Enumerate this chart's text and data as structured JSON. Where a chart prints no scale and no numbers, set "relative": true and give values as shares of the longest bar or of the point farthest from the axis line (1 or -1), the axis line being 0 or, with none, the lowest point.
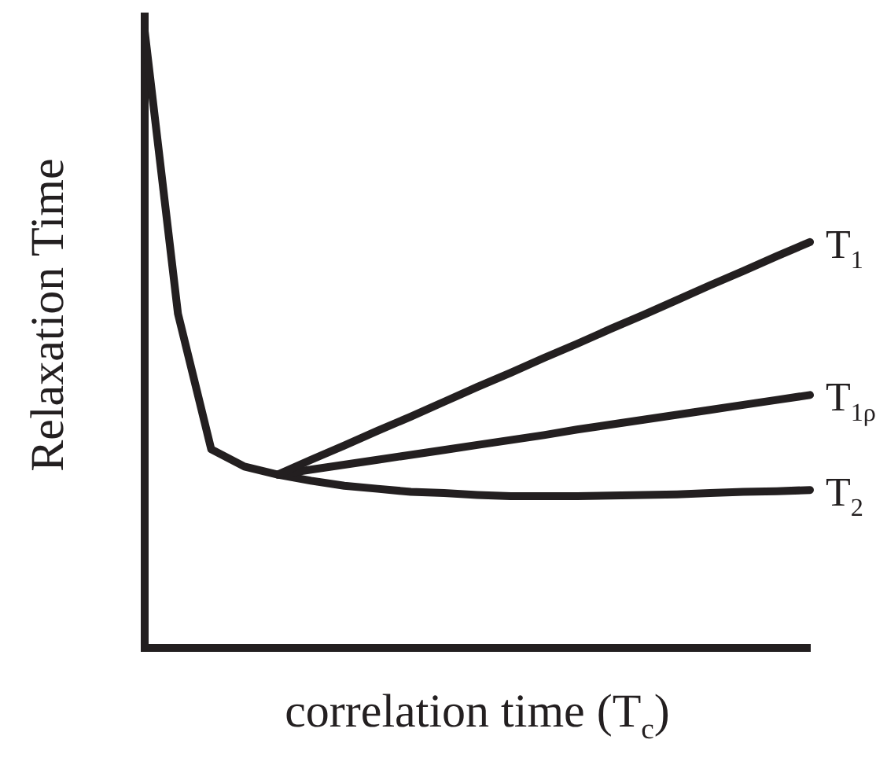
{
  "chart_data": {
    "type": "line",
    "relative": true,
    "xlabel": "correlation time (T$_{c}$)",
    "ylabel": "Relaxation Time",
    "legend": false,
    "grid": false,
    "marker": "none",
    "line_style": "solid",
    "categories": [
      null,
      null,
      null,
      null,
      null,
      null,
      null,
      null,
      null,
      null,
      null,
      null,
      null,
      null,
      null,
      null,
      null,
      null,
      null,
      null,
      null
    ],
    "series": [
      {
        "name": "T$_{1}$",
        "color": "#231f20",
        "values": [
          null,
          null,
          null,
          null,
          0.281,
          0.305,
          0.328,
          0.352,
          0.375,
          0.399,
          0.423,
          0.446,
          0.47,
          0.493,
          0.517,
          0.54,
          0.564,
          0.588,
          0.611,
          0.635,
          0.658
        ]
      },
      {
        "name": "T$_{1ρ}$",
        "color": "#231f20",
        "values": [
          null,
          null,
          null,
          null,
          0.281,
          0.289,
          0.297,
          0.305,
          0.313,
          0.321,
          0.329,
          0.337,
          0.345,
          0.354,
          0.362,
          0.37,
          0.378,
          0.386,
          0.394,
          0.402,
          0.41
        ]
      },
      {
        "name": "T$_{2}$",
        "color": "#231f20",
        "values": [
          1,
          0.542,
          0.322,
          0.294,
          0.281,
          0.271,
          0.263,
          0.258,
          0.253,
          0.251,
          0.248,
          0.246,
          0.246,
          0.246,
          0.247,
          0.248,
          0.249,
          0.251,
          0.253,
          0.254,
          0.256
        ]
      }
    ]
  }
}
